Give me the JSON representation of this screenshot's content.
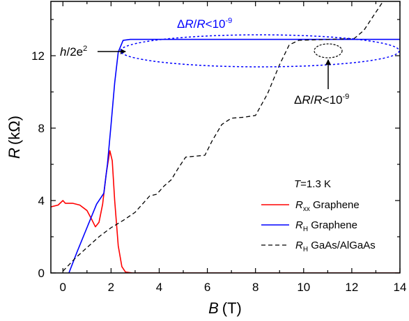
{
  "chart_data": {
    "type": "line",
    "xlabel": {
      "var": "B",
      "unit": "(T)"
    },
    "ylabel": {
      "var": "R",
      "unit": "(kΩ)"
    },
    "xlim": [
      -0.5,
      14
    ],
    "ylim": [
      0,
      15
    ],
    "xticks": [
      "0",
      "2",
      "4",
      "6",
      "8",
      "10",
      "12",
      "14"
    ],
    "yticks": [
      "0",
      "4",
      "8",
      "12"
    ],
    "grid": false,
    "legend_placement": "bottom-right",
    "legend_title": "T=1.3 K",
    "legend_title_parts": {
      "var": "T",
      "rest": "=1.3 K"
    },
    "series": [
      {
        "name": "Rxx Graphene",
        "label_parts": {
          "var": "R",
          "sub": "xx",
          "rest": " Graphene"
        },
        "color": "#ff0000",
        "dash": "solid",
        "points": [
          [
            -0.5,
            3.65
          ],
          [
            -0.2,
            3.75
          ],
          [
            0,
            4.0
          ],
          [
            0.1,
            3.85
          ],
          [
            0.4,
            3.85
          ],
          [
            0.7,
            3.75
          ],
          [
            1.0,
            3.45
          ],
          [
            1.2,
            2.95
          ],
          [
            1.35,
            2.55
          ],
          [
            1.5,
            2.8
          ],
          [
            1.65,
            3.8
          ],
          [
            1.8,
            5.5
          ],
          [
            1.95,
            6.75
          ],
          [
            2.05,
            6.2
          ],
          [
            2.15,
            4.0
          ],
          [
            2.3,
            1.5
          ],
          [
            2.45,
            0.35
          ],
          [
            2.6,
            0.05
          ],
          [
            2.9,
            0
          ],
          [
            14,
            0
          ]
        ]
      },
      {
        "name": "RH Graphene",
        "label_parts": {
          "var": "R",
          "sub": "H",
          "rest": " Graphene"
        },
        "color": "#0000ff",
        "dash": "solid",
        "points": [
          [
            0.25,
            0
          ],
          [
            0.6,
            1.2
          ],
          [
            1.0,
            2.5
          ],
          [
            1.4,
            3.8
          ],
          [
            1.7,
            4.4
          ],
          [
            1.85,
            6.0
          ],
          [
            2.0,
            8.2
          ],
          [
            2.15,
            10.5
          ],
          [
            2.3,
            12.2
          ],
          [
            2.5,
            12.85
          ],
          [
            2.8,
            12.9
          ],
          [
            14,
            12.9
          ]
        ]
      },
      {
        "name": "RH GaAs/AlGaAs",
        "label_parts": {
          "var": "R",
          "sub": "H",
          "rest": " GaAs/AlGaAs"
        },
        "color": "#000000",
        "dash": "6,4",
        "points": [
          [
            0,
            0.1
          ],
          [
            0.5,
            0.8
          ],
          [
            1,
            1.4
          ],
          [
            1.5,
            2.0
          ],
          [
            2,
            2.5
          ],
          [
            2.5,
            2.9
          ],
          [
            3,
            3.35
          ],
          [
            3.3,
            3.8
          ],
          [
            3.6,
            4.25
          ],
          [
            3.9,
            4.35
          ],
          [
            4.2,
            4.8
          ],
          [
            4.5,
            5.15
          ],
          [
            4.8,
            5.8
          ],
          [
            5.1,
            6.4
          ],
          [
            5.5,
            6.45
          ],
          [
            5.9,
            6.5
          ],
          [
            6.2,
            7.3
          ],
          [
            6.6,
            8.2
          ],
          [
            7,
            8.55
          ],
          [
            7.5,
            8.6
          ],
          [
            8,
            8.7
          ],
          [
            8.5,
            9.9
          ],
          [
            9,
            11.5
          ],
          [
            9.4,
            12.6
          ],
          [
            9.8,
            12.85
          ],
          [
            11,
            12.9
          ],
          [
            12.1,
            12.95
          ],
          [
            12.5,
            13.4
          ],
          [
            13,
            14.4
          ],
          [
            13.5,
            15.4
          ]
        ]
      }
    ],
    "annotations": {
      "hall_level": {
        "base": "h",
        "rest": "/2e",
        "sup": "2"
      },
      "delta_upper": {
        "delta": "Δ",
        "a": "R",
        "slash": "/",
        "b": "R",
        "rest": "<10",
        "sup": "-9",
        "color": "#0000ff"
      },
      "delta_lower": {
        "delta": "Δ",
        "a": "R",
        "slash": "/",
        "b": "R",
        "rest": "<10",
        "sup": "-9",
        "color": "#000000"
      }
    }
  }
}
